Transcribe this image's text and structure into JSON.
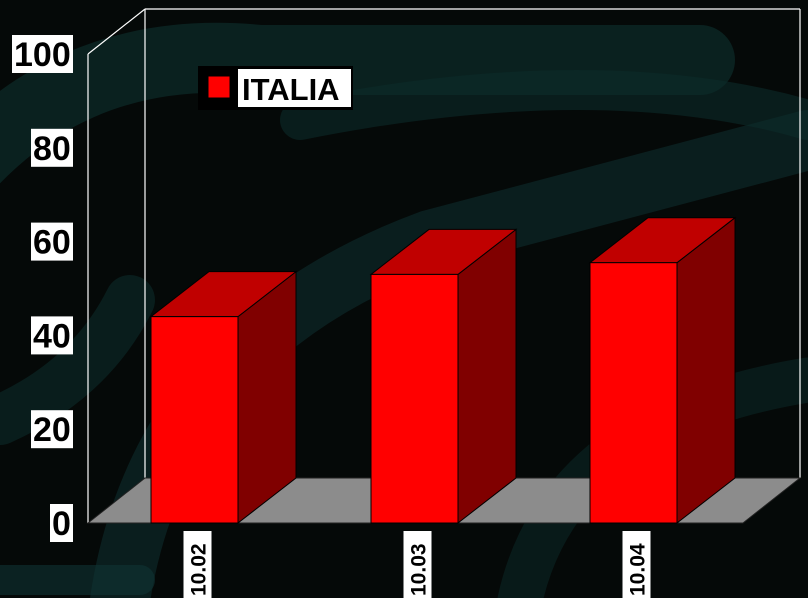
{
  "chart_data": {
    "type": "bar",
    "categories": [
      "10.02",
      "10.03",
      "10.04"
    ],
    "series": [
      {
        "name": "ITALIA",
        "values": [
          44,
          53,
          55.5
        ]
      }
    ],
    "ylim": [
      0,
      100
    ],
    "yticks": [
      "0",
      "20",
      "40",
      "60",
      "80",
      "100"
    ],
    "legend_position": "top-left",
    "grid": false,
    "colors": {
      "bar_front": "#ff0000",
      "bar_top": "#c00000",
      "bar_side": "#800000",
      "floor": "#8c8c8c",
      "background": "#050908",
      "accent_pattern": "#0f3433"
    }
  }
}
